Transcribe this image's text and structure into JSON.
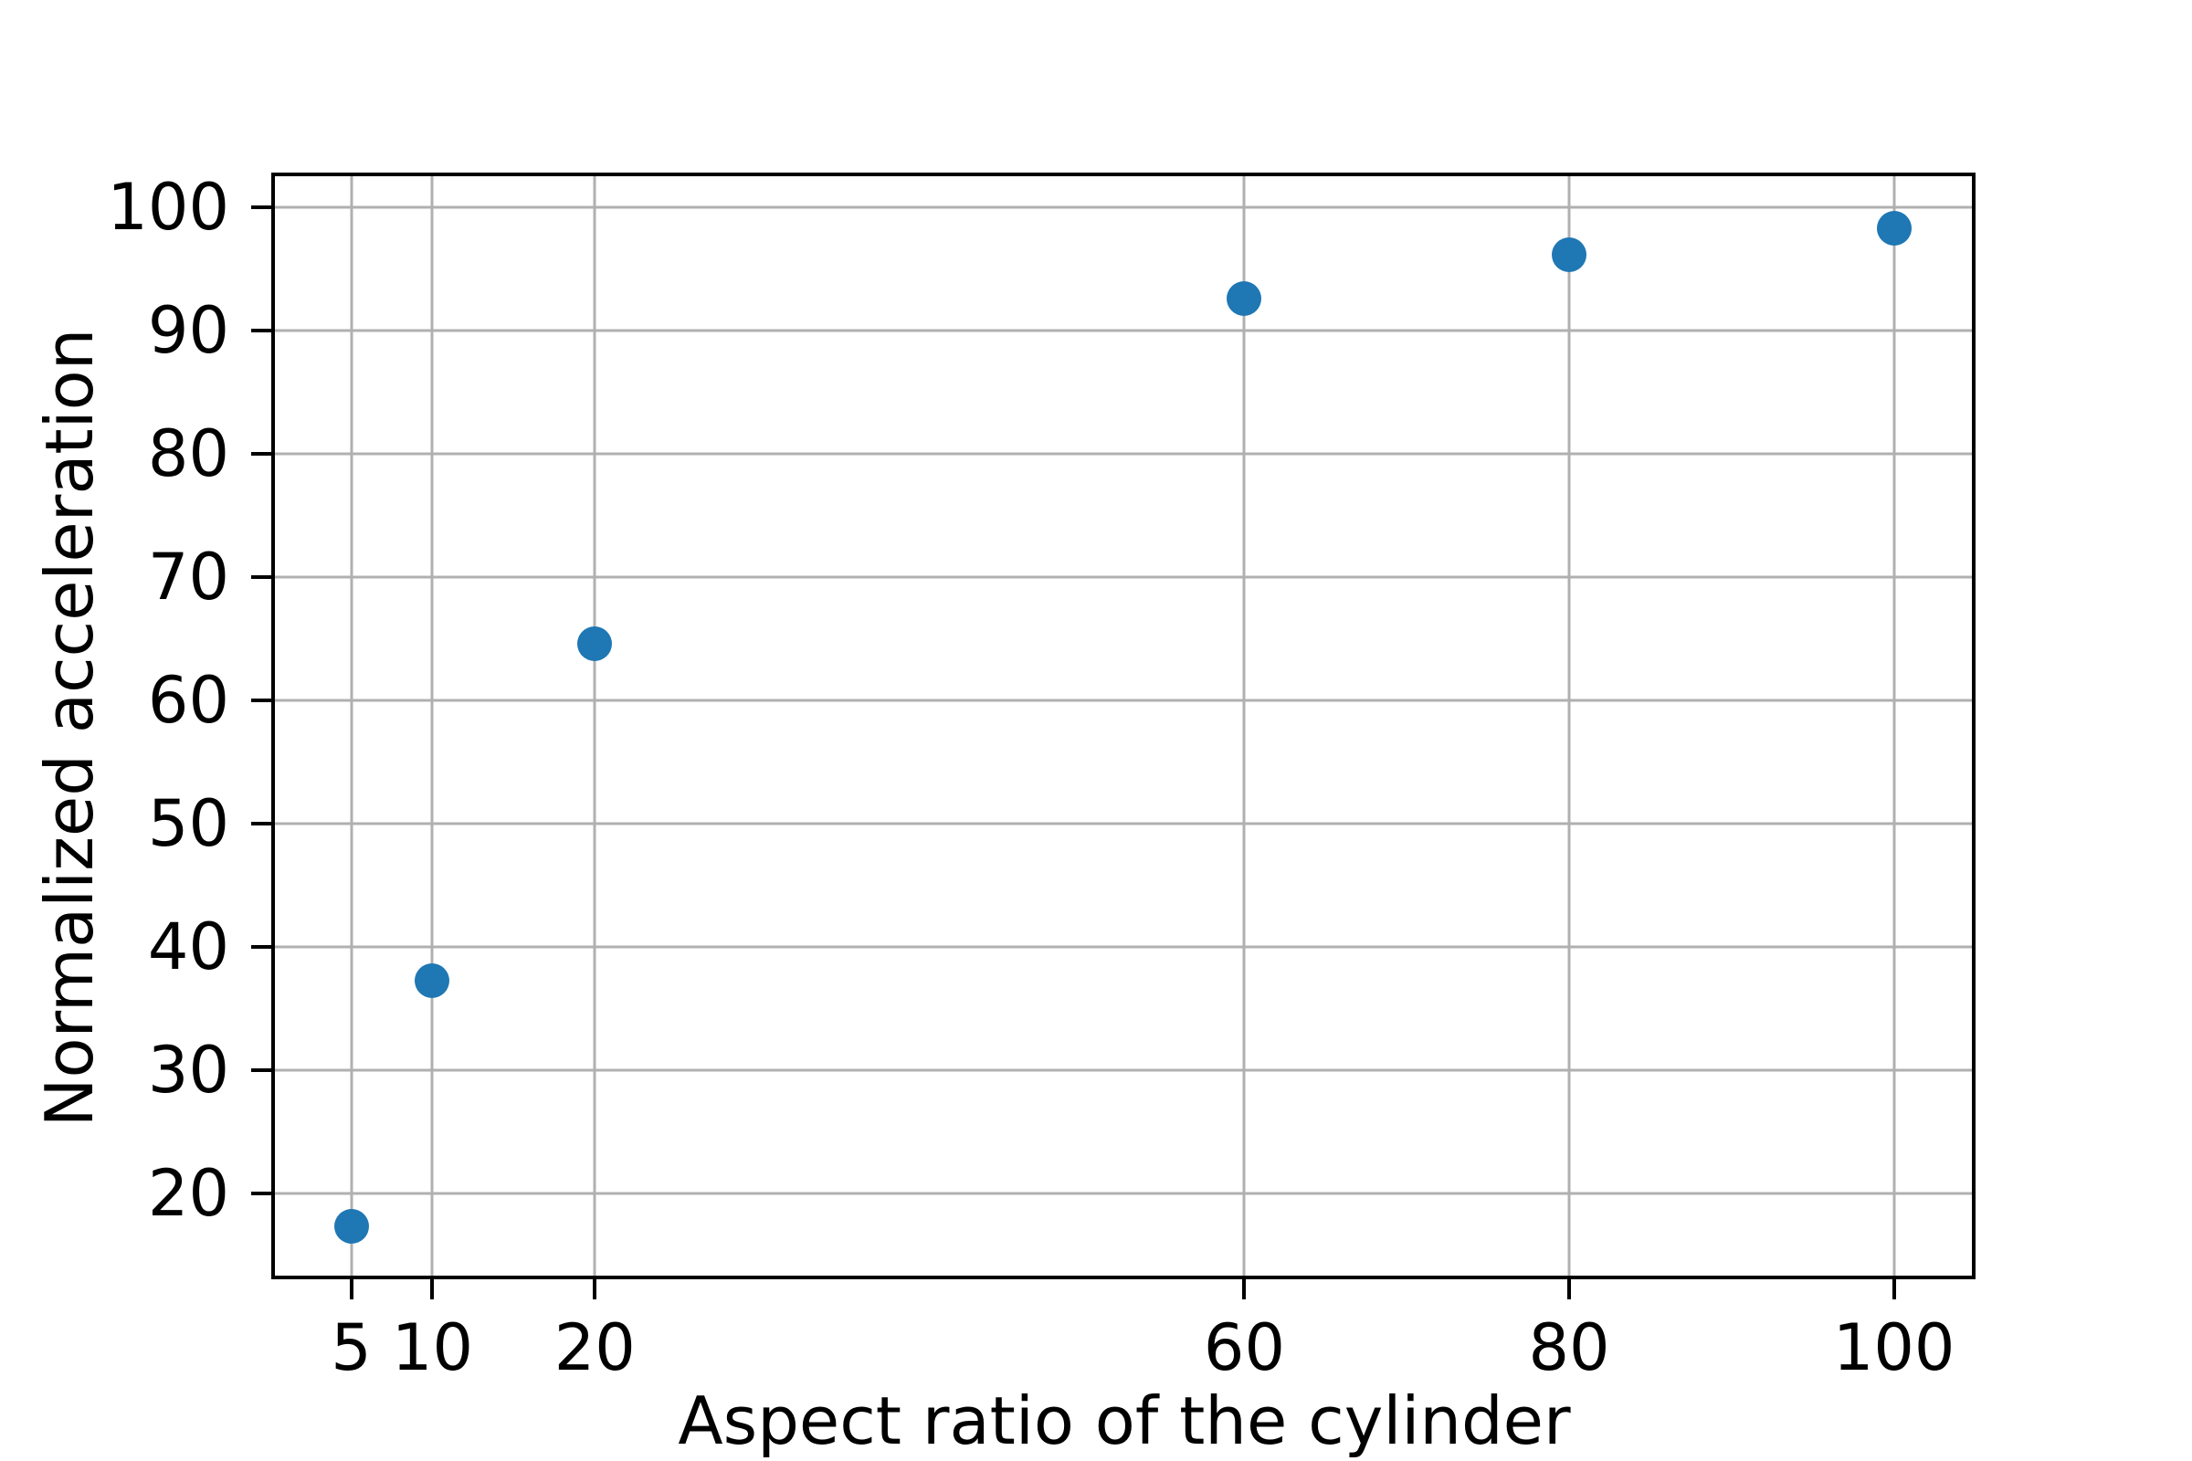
{
  "chart_data": {
    "type": "scatter",
    "title": "",
    "xlabel": "Aspect ratio of the cylinder",
    "ylabel": "Normalized acceleration",
    "x": [
      5,
      10,
      20,
      60,
      80,
      100
    ],
    "y": [
      17.3,
      37.2,
      64.6,
      92.6,
      96.1,
      98.3
    ],
    "xticks": [
      5,
      10,
      20,
      60,
      80,
      100
    ],
    "yticks": [
      20,
      30,
      40,
      50,
      60,
      70,
      80,
      90,
      100
    ],
    "xlim": [
      0.3,
      104.8
    ],
    "ylim": [
      13.3,
      102.5
    ],
    "grid": true,
    "legend_visible": false,
    "marker_color": "#1f77b4",
    "grid_color": "#b0b0b0",
    "axis_color": "#000000",
    "text_color": "#000000",
    "background_color": "#ffffff",
    "marker_diameter_px": 38
  }
}
